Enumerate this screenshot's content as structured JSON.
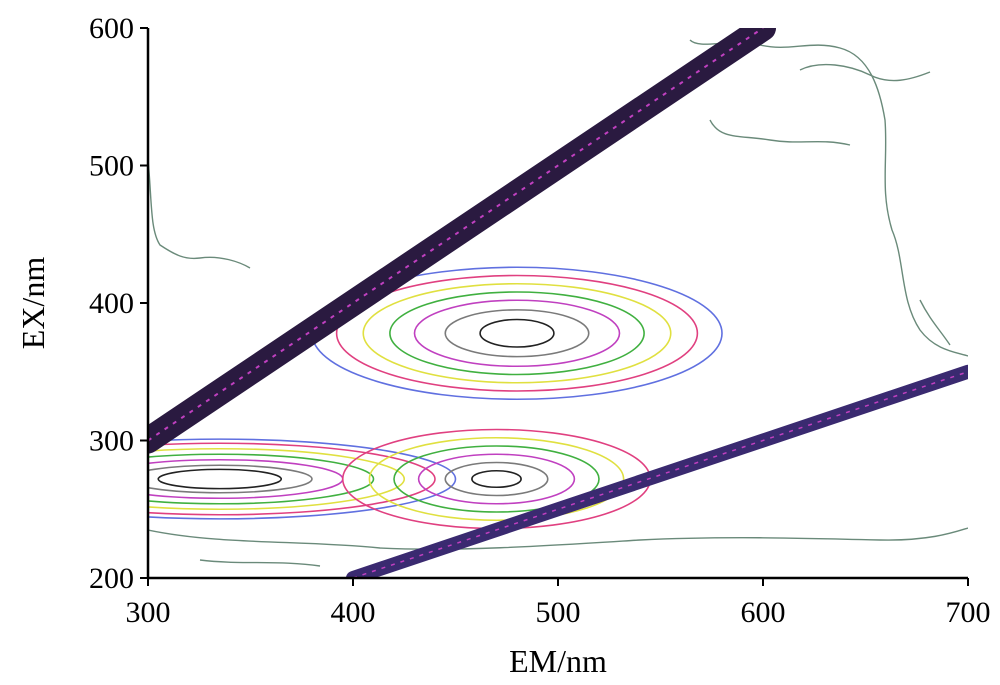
{
  "chart_data": {
    "type": "contour",
    "xlabel": "EM/nm",
    "ylabel": "EX/nm",
    "xlim": [
      300,
      700
    ],
    "ylim": [
      200,
      600
    ],
    "x_ticks": [
      300,
      400,
      500,
      600,
      700
    ],
    "y_ticks": [
      200,
      300,
      400,
      500,
      600
    ],
    "scatter_lines": [
      {
        "kind": "rayleigh_first_order",
        "points": [
          [
            300,
            300
          ],
          [
            600,
            600
          ]
        ],
        "color": "#2a1a40"
      },
      {
        "kind": "rayleigh_second_order",
        "points": [
          [
            400,
            200
          ],
          [
            700,
            350
          ]
        ],
        "color": "#3a2a70"
      }
    ],
    "peaks": [
      {
        "em_center": 335,
        "ex_center": 272,
        "rx": [
          30,
          45,
          60,
          75,
          90,
          105,
          115
        ],
        "ry": [
          7,
          10,
          14,
          18,
          22,
          26,
          29
        ]
      },
      {
        "em_center": 480,
        "ex_center": 378,
        "rx": [
          18,
          35,
          50,
          62,
          75,
          88,
          100
        ],
        "ry": [
          10,
          17,
          24,
          30,
          36,
          42,
          48
        ]
      },
      {
        "em_center": 470,
        "ex_center": 272,
        "rx": [
          12,
          25,
          38,
          50,
          62,
          75
        ],
        "ry": [
          6,
          12,
          18,
          24,
          30,
          36
        ]
      }
    ],
    "contour_colors": [
      "#222222",
      "#7a7a7a",
      "#c040c0",
      "#40b040",
      "#e0e040",
      "#e04080",
      "#6070e0"
    ],
    "background_contour_color": "#6a8a7a"
  }
}
